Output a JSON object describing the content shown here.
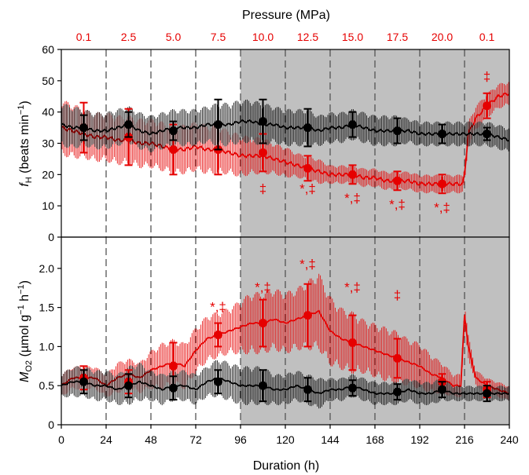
{
  "colors": {
    "pressurized": "#e60000",
    "control": "#000000",
    "shade": "#c0c0c0"
  },
  "chart_data": [
    {
      "type": "line",
      "panel": "top",
      "top_axis": {
        "title": "Pressure (MPa)",
        "labels": [
          "0.1",
          "2.5",
          "5.0",
          "7.5",
          "10.0",
          "12.5",
          "15.0",
          "17.5",
          "20.0",
          "0.1"
        ]
      },
      "ylabel_parts": {
        "main": "f",
        "sub": "H",
        "rest": " (beats min",
        "sup": "−1",
        "close": ")"
      },
      "xlim": [
        0,
        240
      ],
      "ylim": [
        0,
        60
      ],
      "yticks": [
        0,
        10,
        20,
        30,
        40,
        50,
        60
      ],
      "shaded_region": [
        96,
        240
      ],
      "dashed_lines": [
        24,
        48,
        72,
        96,
        120,
        144,
        168,
        192,
        216
      ],
      "series": [
        {
          "color": "#e60000",
          "line": {
            "x": [
              0,
              6,
              12,
              18,
              24,
              30,
              36,
              42,
              48,
              54,
              60,
              66,
              72,
              78,
              84,
              90,
              96,
              102,
              108,
              114,
              120,
              126,
              132,
              138,
              144,
              150,
              156,
              162,
              168,
              174,
              180,
              186,
              192,
              198,
              204,
              210,
              215,
              216,
              218,
              222,
              228,
              234,
              240
            ],
            "y": [
              35,
              34,
              33,
              32,
              32,
              31,
              31,
              30,
              30,
              29,
              28,
              28,
              29,
              28,
              28,
              27,
              26,
              26,
              26,
              25,
              24,
              23,
              22,
              21,
              20,
              20,
              20,
              19,
              19,
              18,
              18,
              18,
              17,
              17,
              17,
              17,
              17,
              20,
              33,
              38,
              42,
              45,
              46
            ]
          },
          "band_halfwidth": [
            9,
            9,
            8,
            8,
            8,
            8,
            8,
            8,
            8,
            8,
            8,
            8,
            8,
            8,
            8,
            7,
            7,
            6,
            6,
            5,
            5,
            4,
            4,
            4,
            3,
            3,
            3,
            3,
            3,
            3,
            3,
            3,
            3,
            3,
            3,
            3,
            3,
            3,
            4,
            4,
            4,
            4,
            4
          ],
          "means": [
            {
              "x": 12,
              "y": 35,
              "err": 8
            },
            {
              "x": 36,
              "y": 32,
              "err": 9
            },
            {
              "x": 60,
              "y": 28,
              "err": 8
            },
            {
              "x": 84,
              "y": 28,
              "err": 8
            },
            {
              "x": 108,
              "y": 27,
              "err": 6
            },
            {
              "x": 132,
              "y": 22,
              "err": 4
            },
            {
              "x": 156,
              "y": 20,
              "err": 3
            },
            {
              "x": 180,
              "y": 18,
              "err": 3
            },
            {
              "x": 204,
              "y": 17,
              "err": 3
            },
            {
              "x": 228,
              "y": 42,
              "err": 4
            }
          ]
        },
        {
          "color": "#000000",
          "line": {
            "x": [
              0,
              6,
              12,
              18,
              24,
              30,
              36,
              42,
              48,
              54,
              60,
              66,
              72,
              78,
              84,
              90,
              96,
              102,
              108,
              114,
              120,
              126,
              132,
              138,
              144,
              150,
              156,
              162,
              168,
              174,
              180,
              186,
              192,
              198,
              204,
              210,
              216,
              222,
              228,
              234,
              240
            ],
            "y": [
              36,
              35,
              35,
              34,
              34,
              35,
              36,
              34,
              33,
              34,
              35,
              35,
              35,
              36,
              36,
              36,
              37,
              37,
              36,
              36,
              35,
              35,
              35,
              34,
              35,
              35,
              36,
              35,
              34,
              34,
              34,
              34,
              33,
              33,
              33,
              33,
              33,
              33,
              33,
              32,
              31
            ]
          },
          "band_halfwidth": [
            7,
            7,
            6,
            6,
            6,
            6,
            6,
            6,
            6,
            6,
            6,
            6,
            6,
            6,
            7,
            7,
            7,
            7,
            7,
            6,
            6,
            6,
            6,
            5,
            5,
            5,
            5,
            5,
            5,
            5,
            5,
            4,
            4,
            4,
            4,
            4,
            4,
            4,
            4,
            4,
            4
          ],
          "means": [
            {
              "x": 12,
              "y": 35,
              "err": 4
            },
            {
              "x": 36,
              "y": 36,
              "err": 4
            },
            {
              "x": 60,
              "y": 34,
              "err": 3
            },
            {
              "x": 84,
              "y": 36,
              "err": 8
            },
            {
              "x": 108,
              "y": 37,
              "err": 7
            },
            {
              "x": 132,
              "y": 35,
              "err": 6
            },
            {
              "x": 156,
              "y": 36,
              "err": 4
            },
            {
              "x": 180,
              "y": 34,
              "err": 4
            },
            {
              "x": 204,
              "y": 33,
              "err": 3
            },
            {
              "x": 228,
              "y": 33,
              "err": 2
            }
          ]
        }
      ],
      "annotations": [
        {
          "text": "‡",
          "x": 228,
          "y": 50,
          "color": "#e60000"
        },
        {
          "text": "‡",
          "x": 108,
          "y": 14,
          "color": "#e60000"
        },
        {
          "text": "*,‡",
          "x": 132,
          "y": 14,
          "color": "#e60000"
        },
        {
          "text": "*,‡",
          "x": 156,
          "y": 11,
          "color": "#e60000"
        },
        {
          "text": "*,‡",
          "x": 180,
          "y": 9,
          "color": "#e60000"
        },
        {
          "text": "*,‡",
          "x": 204,
          "y": 8,
          "color": "#e60000"
        }
      ]
    },
    {
      "type": "line",
      "panel": "bottom",
      "xlabel": "Duration (h)",
      "ylabel_parts": {
        "main": "M",
        "sub": "O2",
        "rest": " (µmol g",
        "sup": "−1",
        "rest2": " h",
        "sup2": "−1",
        "close": ")"
      },
      "xlim": [
        0,
        240
      ],
      "ylim": [
        0,
        2.4
      ],
      "xticks": [
        0,
        24,
        48,
        72,
        96,
        120,
        144,
        168,
        192,
        216,
        240
      ],
      "yticks": [
        0,
        0.5,
        1.0,
        1.5,
        2.0
      ],
      "ytick_labels": [
        "0",
        "0.5",
        "1.0",
        "1.5",
        "2.0"
      ],
      "shaded_region": [
        96,
        240
      ],
      "dashed_lines": [
        24,
        48,
        72,
        96,
        120,
        144,
        168,
        192,
        216
      ],
      "series": [
        {
          "color": "#e60000",
          "line": {
            "x": [
              0,
              6,
              12,
              18,
              24,
              30,
              36,
              42,
              48,
              54,
              60,
              66,
              72,
              78,
              84,
              90,
              96,
              102,
              108,
              114,
              120,
              126,
              132,
              138,
              144,
              150,
              156,
              162,
              168,
              174,
              180,
              186,
              192,
              198,
              204,
              210,
              214,
              216,
              218,
              222,
              228,
              234,
              240
            ],
            "y": [
              0.5,
              0.6,
              0.6,
              0.6,
              0.5,
              0.6,
              0.65,
              0.6,
              0.7,
              0.75,
              0.8,
              0.75,
              0.95,
              1.1,
              1.15,
              1.2,
              1.25,
              1.3,
              1.3,
              1.35,
              1.3,
              1.35,
              1.4,
              1.45,
              1.2,
              1.1,
              1.05,
              1.0,
              0.95,
              0.9,
              0.85,
              0.8,
              0.75,
              0.65,
              0.6,
              0.5,
              0.5,
              1.4,
              1.0,
              0.6,
              0.5,
              0.45,
              0.4
            ]
          },
          "band_halfwidth": [
            0.15,
            0.15,
            0.15,
            0.15,
            0.15,
            0.2,
            0.2,
            0.2,
            0.25,
            0.3,
            0.3,
            0.3,
            0.3,
            0.3,
            0.3,
            0.3,
            0.35,
            0.4,
            0.4,
            0.4,
            0.4,
            0.4,
            0.45,
            0.5,
            0.45,
            0.4,
            0.4,
            0.35,
            0.35,
            0.35,
            0.35,
            0.3,
            0.3,
            0.25,
            0.2,
            0.15,
            0.15,
            0.15,
            0.15,
            0.1,
            0.1,
            0.1,
            0.1
          ],
          "means": [
            {
              "x": 12,
              "y": 0.6,
              "err": 0.15
            },
            {
              "x": 36,
              "y": 0.55,
              "err": 0.15
            },
            {
              "x": 60,
              "y": 0.75,
              "err": 0.3
            },
            {
              "x": 84,
              "y": 1.15,
              "err": 0.15
            },
            {
              "x": 108,
              "y": 1.3,
              "err": 0.3
            },
            {
              "x": 132,
              "y": 1.4,
              "err": 0.4
            },
            {
              "x": 156,
              "y": 1.05,
              "err": 0.35
            },
            {
              "x": 180,
              "y": 0.85,
              "err": 0.25
            },
            {
              "x": 204,
              "y": 0.55,
              "err": 0.1
            },
            {
              "x": 228,
              "y": 0.45,
              "err": 0.1
            }
          ]
        },
        {
          "color": "#000000",
          "line": {
            "x": [
              0,
              6,
              12,
              18,
              24,
              30,
              36,
              42,
              48,
              54,
              60,
              66,
              72,
              78,
              84,
              90,
              96,
              102,
              108,
              114,
              120,
              126,
              132,
              138,
              144,
              150,
              156,
              162,
              168,
              174,
              180,
              186,
              192,
              198,
              204,
              210,
              216,
              222,
              228,
              234,
              240
            ],
            "y": [
              0.5,
              0.55,
              0.55,
              0.5,
              0.5,
              0.45,
              0.5,
              0.55,
              0.5,
              0.45,
              0.5,
              0.5,
              0.45,
              0.55,
              0.6,
              0.55,
              0.5,
              0.5,
              0.5,
              0.45,
              0.45,
              0.5,
              0.45,
              0.4,
              0.45,
              0.45,
              0.5,
              0.45,
              0.4,
              0.4,
              0.4,
              0.45,
              0.4,
              0.4,
              0.45,
              0.4,
              0.4,
              0.4,
              0.4,
              0.4,
              0.4
            ]
          },
          "band_halfwidth": [
            0.15,
            0.2,
            0.2,
            0.2,
            0.2,
            0.2,
            0.25,
            0.25,
            0.2,
            0.2,
            0.2,
            0.2,
            0.2,
            0.2,
            0.25,
            0.25,
            0.25,
            0.25,
            0.25,
            0.2,
            0.2,
            0.2,
            0.2,
            0.2,
            0.15,
            0.15,
            0.15,
            0.15,
            0.15,
            0.15,
            0.15,
            0.15,
            0.15,
            0.15,
            0.15,
            0.1,
            0.1,
            0.1,
            0.1,
            0.1,
            0.1
          ],
          "means": [
            {
              "x": 12,
              "y": 0.55,
              "err": 0.15
            },
            {
              "x": 36,
              "y": 0.5,
              "err": 0.15
            },
            {
              "x": 60,
              "y": 0.47,
              "err": 0.15
            },
            {
              "x": 84,
              "y": 0.55,
              "err": 0.15
            },
            {
              "x": 108,
              "y": 0.5,
              "err": 0.2
            },
            {
              "x": 132,
              "y": 0.45,
              "err": 0.15
            },
            {
              "x": 156,
              "y": 0.47,
              "err": 0.1
            },
            {
              "x": 180,
              "y": 0.42,
              "err": 0.1
            },
            {
              "x": 204,
              "y": 0.45,
              "err": 0.1
            },
            {
              "x": 228,
              "y": 0.4,
              "err": 0.1
            }
          ]
        }
      ],
      "annotations": [
        {
          "text": "*,‡",
          "x": 84,
          "y": 1.45,
          "color": "#e60000"
        },
        {
          "text": "*,‡",
          "x": 108,
          "y": 1.7,
          "color": "#e60000"
        },
        {
          "text": "*,‡",
          "x": 132,
          "y": 2.0,
          "color": "#e60000"
        },
        {
          "text": "*,‡",
          "x": 156,
          "y": 1.7,
          "color": "#e60000"
        },
        {
          "text": "‡",
          "x": 180,
          "y": 1.6,
          "color": "#e60000"
        }
      ]
    }
  ]
}
